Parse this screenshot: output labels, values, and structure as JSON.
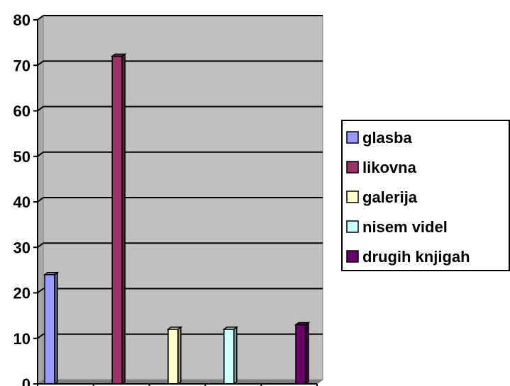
{
  "chart_data": {
    "type": "bar",
    "view": "3d",
    "categories": [
      "glasba",
      "likovna",
      "galerija",
      "nisem videl",
      "drugih knjigah"
    ],
    "series": [
      {
        "name": "glasba",
        "category": "glasba",
        "value": 24,
        "color": "#9999FF"
      },
      {
        "name": "likovna",
        "category": "likovna",
        "value": 72,
        "color": "#993366"
      },
      {
        "name": "galerija",
        "category": "galerija",
        "value": 12,
        "color": "#FFFFCC"
      },
      {
        "name": "nisem videl",
        "category": "nisem videl",
        "value": 12,
        "color": "#CCFFFF"
      },
      {
        "name": "drugih knjigah",
        "category": "drugih knjigah",
        "value": 13,
        "color": "#660066"
      }
    ],
    "ylim": [
      0,
      80
    ],
    "yticks": [
      "0",
      "10",
      "20",
      "30",
      "40",
      "50",
      "60",
      "70",
      "80"
    ],
    "grid": true,
    "legend_position": "right",
    "plot_background": "#C0C0C0"
  }
}
